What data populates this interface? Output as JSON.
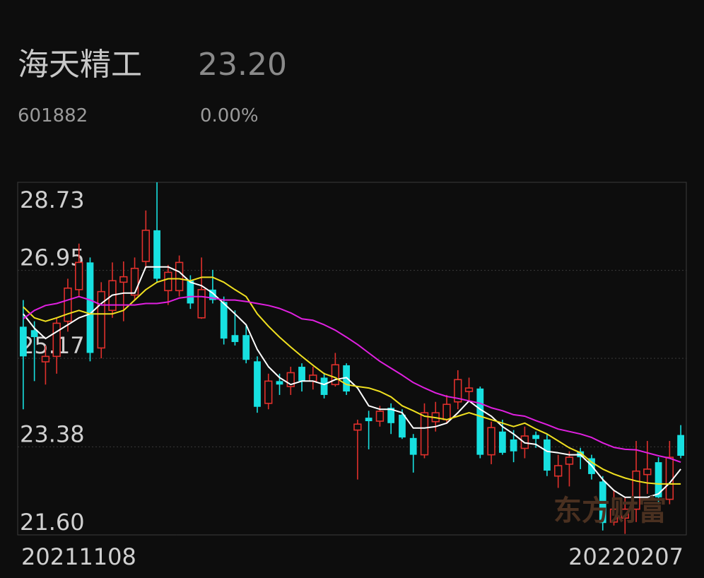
{
  "header": {
    "name": "海天精工",
    "price": "23.20",
    "code": "601882",
    "change": "0.00%"
  },
  "chart_data": {
    "type": "candlestick",
    "watermark": "东方财富",
    "categories": [
      "20211108",
      null,
      null,
      null,
      null,
      null,
      null,
      null,
      null,
      null,
      null,
      null,
      null,
      null,
      null,
      null,
      null,
      null,
      null,
      null,
      null,
      null,
      null,
      null,
      null,
      null,
      null,
      null,
      null,
      null,
      null,
      null,
      null,
      null,
      null,
      null,
      null,
      null,
      null,
      null,
      null,
      null,
      null,
      null,
      null,
      null,
      null,
      null,
      null,
      null,
      null,
      null,
      null,
      null,
      null,
      null,
      null,
      null,
      null,
      "20220207"
    ],
    "open": [
      25.81,
      25.74,
      25.1,
      25.21,
      25.92,
      26.56,
      27.11,
      25.38,
      26.14,
      26.71,
      26.45,
      27.13,
      27.76,
      26.54,
      26.54,
      26.74,
      25.99,
      26.56,
      26.31,
      25.64,
      25.64,
      25.11,
      24.26,
      24.71,
      24.6,
      25.0,
      24.71,
      24.78,
      24.64,
      25.03,
      23.72,
      23.97,
      23.9,
      24.17,
      24.03,
      23.56,
      23.22,
      23.89,
      23.93,
      24.29,
      24.5,
      24.56,
      23.22,
      23.69,
      23.53,
      23.35,
      23.62,
      23.53,
      22.79,
      23.03,
      23.29,
      23.15,
      22.68,
      21.86,
      21.94,
      22.12,
      22.82,
      23.07,
      22.32,
      23.62
    ],
    "high": [
      26.35,
      25.92,
      25.43,
      25.99,
      26.78,
      27.49,
      27.21,
      26.71,
      27.11,
      27.13,
      27.21,
      28.16,
      28.73,
      27.06,
      27.25,
      26.85,
      27.21,
      26.96,
      26.42,
      26.14,
      25.85,
      25.21,
      24.86,
      24.86,
      25.0,
      25.07,
      25.0,
      24.88,
      25.28,
      25.07,
      23.93,
      24.11,
      24.21,
      24.26,
      24.14,
      23.64,
      24.26,
      24.29,
      24.43,
      24.93,
      24.78,
      24.6,
      23.89,
      23.93,
      23.72,
      23.79,
      23.69,
      23.64,
      23.22,
      23.29,
      23.36,
      23.22,
      22.79,
      22.5,
      22.36,
      23.5,
      23.5,
      23.17,
      23.5,
      23.82
    ],
    "low": [
      24.14,
      24.71,
      24.64,
      24.86,
      25.71,
      26.42,
      25.11,
      25.17,
      25.99,
      25.92,
      26.35,
      26.99,
      26.71,
      26.25,
      26.42,
      26.17,
      25.97,
      26.28,
      25.45,
      25.43,
      25.07,
      24.07,
      24.14,
      24.43,
      24.43,
      24.5,
      24.54,
      24.36,
      24.6,
      24.43,
      22.72,
      23.33,
      23.79,
      23.64,
      23.54,
      22.86,
      23.15,
      23.69,
      23.86,
      24.14,
      24.29,
      23.15,
      23.03,
      23.22,
      23.07,
      23.15,
      23.36,
      22.79,
      22.55,
      22.58,
      22.93,
      22.72,
      21.69,
      21.79,
      21.62,
      21.86,
      22.43,
      22.22,
      22.22,
      23.15
    ],
    "close": [
      25.21,
      25.6,
      25.21,
      25.88,
      26.59,
      27.11,
      25.28,
      26.52,
      26.74,
      26.82,
      26.99,
      27.76,
      26.78,
      26.91,
      27.11,
      26.28,
      26.56,
      26.35,
      25.57,
      25.5,
      25.14,
      24.19,
      24.71,
      24.64,
      24.88,
      24.71,
      24.83,
      24.43,
      25.04,
      24.5,
      23.84,
      23.9,
      24.1,
      23.86,
      23.57,
      23.22,
      24.07,
      24.07,
      24.24,
      24.74,
      24.57,
      23.22,
      23.77,
      23.26,
      23.29,
      23.6,
      23.54,
      22.9,
      23.0,
      23.17,
      23.17,
      22.83,
      21.84,
      22.12,
      22.12,
      22.89,
      22.93,
      22.36,
      23.17,
      23.2
    ],
    "up_color": "#e0302c",
    "down_color": "#17e0e0",
    "series": [
      {
        "color": "#ffffff",
        "values": [
          26.07,
          25.78,
          25.57,
          25.71,
          25.85,
          25.99,
          26.07,
          26.28,
          26.45,
          26.49,
          26.49,
          27.02,
          27.02,
          27.02,
          26.92,
          26.71,
          26.64,
          26.49,
          26.28,
          26.07,
          25.85,
          25.35,
          25.0,
          24.78,
          24.64,
          24.71,
          24.71,
          24.64,
          24.74,
          24.78,
          24.57,
          24.21,
          24.14,
          24.14,
          24.07,
          23.76,
          23.76,
          23.79,
          23.86,
          24.07,
          24.31,
          24.14,
          24.0,
          23.79,
          23.64,
          23.46,
          23.43,
          23.29,
          23.26,
          23.22,
          23.22,
          23.0,
          22.72,
          22.5,
          22.36,
          22.36,
          22.36,
          22.43,
          22.65,
          22.93
        ]
      },
      {
        "color": "#f0e020",
        "values": [
          26.21,
          25.99,
          25.92,
          25.99,
          26.07,
          26.14,
          26.07,
          26.07,
          26.07,
          26.14,
          26.35,
          26.56,
          26.71,
          26.78,
          26.78,
          26.74,
          26.81,
          26.81,
          26.71,
          26.56,
          26.42,
          26.07,
          25.82,
          25.6,
          25.4,
          25.21,
          25.03,
          24.86,
          24.78,
          24.64,
          24.6,
          24.57,
          24.5,
          24.39,
          24.21,
          24.11,
          24.0,
          23.97,
          23.93,
          24.0,
          24.07,
          24.0,
          23.93,
          23.86,
          23.79,
          23.86,
          23.74,
          23.64,
          23.5,
          23.36,
          23.26,
          23.07,
          22.93,
          22.83,
          22.75,
          22.69,
          22.65,
          22.63,
          22.63,
          22.63
        ]
      },
      {
        "color": "#e020e0",
        "values": [
          25.97,
          26.14,
          26.24,
          26.28,
          26.35,
          26.42,
          26.35,
          26.25,
          26.25,
          26.25,
          26.25,
          26.28,
          26.28,
          26.31,
          26.39,
          26.42,
          26.42,
          26.39,
          26.35,
          26.35,
          26.32,
          26.28,
          26.24,
          26.18,
          26.09,
          25.97,
          25.94,
          25.85,
          25.74,
          25.6,
          25.45,
          25.28,
          25.11,
          24.97,
          24.83,
          24.68,
          24.57,
          24.47,
          24.4,
          24.36,
          24.31,
          24.26,
          24.17,
          24.11,
          24.03,
          24.0,
          23.91,
          23.83,
          23.74,
          23.69,
          23.64,
          23.57,
          23.46,
          23.37,
          23.33,
          23.32,
          23.26,
          23.2,
          23.15,
          23.07
        ]
      }
    ],
    "ylim": [
      21.6,
      28.73
    ],
    "yticks": [
      {
        "value": 21.6,
        "label": "21.60"
      },
      23.38,
      25.17,
      26.95,
      28.73
    ],
    "grid": true
  }
}
